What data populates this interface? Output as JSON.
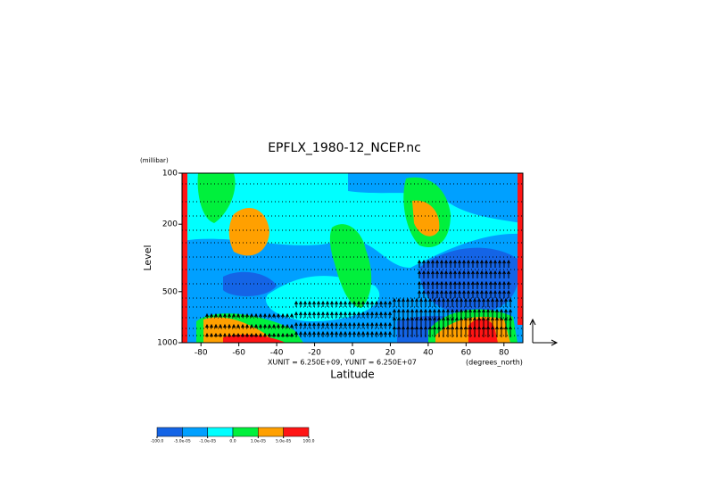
{
  "chart_data": {
    "type": "contour",
    "title": "EPFLX_1980-12_NCEP.nc",
    "y_unit": "(millibar)",
    "y_label": "Level",
    "x_label": "Latitude",
    "x_unit": "(degrees_north)",
    "vector_scale": "XUNIT = 6.250E+09, YUNIT = 6.250E+07",
    "xlim": [
      -90,
      90
    ],
    "xticks": [
      -80,
      -60,
      -40,
      -20,
      0,
      20,
      40,
      60,
      80
    ],
    "ylim": [
      100,
      1000
    ],
    "yticks": [
      100,
      200,
      500,
      1000
    ],
    "y_log": true,
    "y_reversed": true,
    "levels": [
      {
        "value": -100,
        "label": "-100.0"
      },
      {
        "value": -5e-05,
        "label": "-5.0e-05"
      },
      {
        "value": -1e-05,
        "label": "-1.0e-05"
      },
      {
        "value": 0,
        "label": "0.0"
      },
      {
        "value": 1e-05,
        "label": "1.0e-05"
      },
      {
        "value": 5e-05,
        "label": "5.0e-05"
      },
      {
        "value": 100,
        "label": "100.0"
      }
    ],
    "colors": [
      "#1464e6",
      "#00a0ff",
      "#00ffff",
      "#00f03c",
      "#ffa000",
      "#ff1414"
    ]
  }
}
